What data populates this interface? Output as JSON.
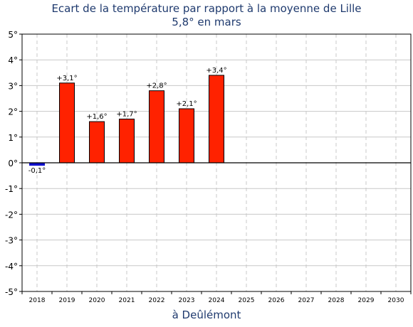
{
  "chart_data": {
    "type": "bar",
    "title": "Ecart de la température par rapport à la moyenne de Lille",
    "subtitle": "5,8° en mars",
    "xlabel": "à Deûlémont",
    "categories": [
      "2018",
      "2019",
      "2020",
      "2021",
      "2022",
      "2023",
      "2024",
      "2025",
      "2026",
      "2027",
      "2028",
      "2029",
      "2030"
    ],
    "values": [
      -0.1,
      3.1,
      1.6,
      1.7,
      2.8,
      2.1,
      3.4,
      null,
      null,
      null,
      null,
      null,
      null
    ],
    "data_labels": [
      "-0,1°",
      "+3,1°",
      "+1,6°",
      "+1,7°",
      "+2,8°",
      "+2,1°",
      "+3,4°",
      "",
      "",
      "",
      "",
      "",
      ""
    ],
    "yticks": [
      5,
      4,
      3,
      2,
      1,
      0,
      -1,
      -2,
      -3,
      -4,
      -5
    ],
    "ytick_labels": [
      "5°",
      "4°",
      "3°",
      "2°",
      "1°",
      "0°",
      "-1°",
      "-2°",
      "-3°",
      "-4°",
      "-5°"
    ],
    "ylim": [
      -5,
      5
    ],
    "grid": true,
    "colors": {
      "positive": "#ff2200",
      "negative": "#1010cc",
      "grid": "#c8c8c8",
      "title": "#1f3a6e"
    }
  }
}
